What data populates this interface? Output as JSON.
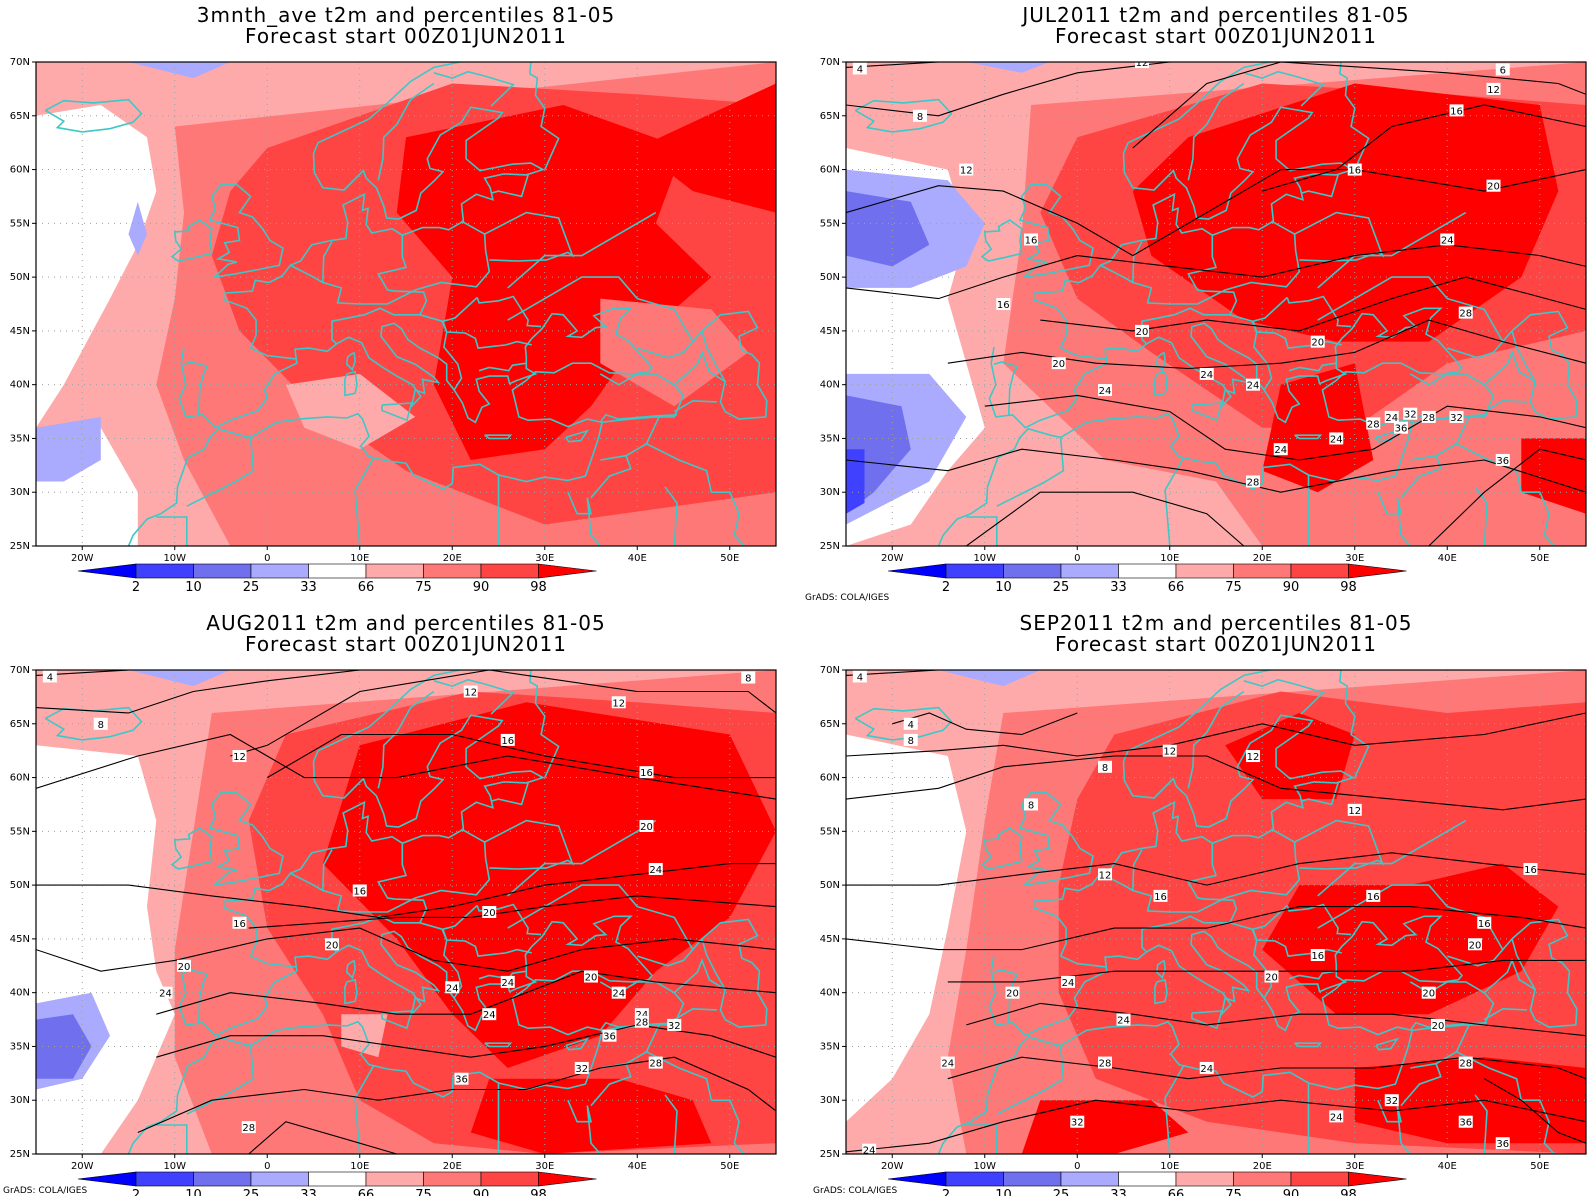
{
  "panels": [
    {
      "title_line1": "3mnth_ave t2m and percentiles 81-05",
      "title_line2": "Forecast start 00Z01JUN2011",
      "contour_labels": [],
      "credit": ""
    },
    {
      "title_line1": "JUL2011 t2m and percentiles 81-05",
      "title_line2": "Forecast start 00Z01JUN2011",
      "contour_labels": [
        "4",
        "8",
        "12",
        "12",
        "6",
        "12",
        "16",
        "16",
        "20",
        "16",
        "24",
        "16",
        "20",
        "28",
        "20",
        "24",
        "24",
        "20",
        "24",
        "28",
        "24",
        "24",
        "32",
        "36",
        "28",
        "32",
        "24",
        "36",
        "28"
      ],
      "credit": "GrADS: COLA/IGES"
    },
    {
      "title_line1": "AUG2011 t2m and percentiles 81-05",
      "title_line2": "Forecast start 00Z01JUN2011",
      "contour_labels": [
        "4",
        "8",
        "12",
        "12",
        "8",
        "12",
        "16",
        "16",
        "20",
        "16",
        "24",
        "16",
        "20",
        "20",
        "20",
        "24",
        "24",
        "24",
        "24",
        "20",
        "24",
        "24",
        "28",
        "32",
        "32",
        "36",
        "28",
        "28",
        "36"
      ],
      "credit": "GrADS: COLA/IGES"
    },
    {
      "title_line1": "SEP2011 t2m and percentiles 81-05",
      "title_line2": "Forecast start 00Z01JUN2011",
      "contour_labels": [
        "4",
        "4",
        "8",
        "8",
        "12",
        "8",
        "12",
        "12",
        "16",
        "12",
        "16",
        "16",
        "16",
        "20",
        "20",
        "16",
        "20",
        "24",
        "20",
        "20",
        "24",
        "28",
        "24",
        "28",
        "32",
        "24",
        "24",
        "36",
        "32",
        "36",
        "24"
      ],
      "credit": "GrADS: COLA/IGES"
    }
  ],
  "axes": {
    "lat_labels": [
      "70N",
      "65N",
      "60N",
      "55N",
      "50N",
      "45N",
      "40N",
      "35N",
      "30N",
      "25N"
    ],
    "lon_labels": [
      "20W",
      "10W",
      "0",
      "10E",
      "20E",
      "30E",
      "40E",
      "50E"
    ]
  },
  "colorbar": {
    "labels": [
      "2",
      "10",
      "25",
      "33",
      "66",
      "75",
      "90",
      "98"
    ],
    "colors": [
      "#0000ff",
      "#4040ff",
      "#7070ee",
      "#aaaaff",
      "#ffffff",
      "#ffaaaa",
      "#ff7878",
      "#ff4444",
      "#ff0000"
    ]
  },
  "colors": {
    "coast": "#3cc8c8",
    "contour": "#000000",
    "grid": "#a0a0a0"
  }
}
